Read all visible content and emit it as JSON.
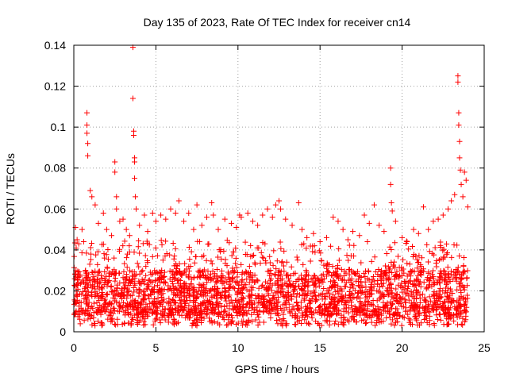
{
  "chart_data": {
    "type": "scatter",
    "title": "Day 135 of 2023, Rate Of TEC Index for receiver cn14",
    "xlabel": "GPS time / hours",
    "ylabel": "ROTI / TECUs",
    "xlim": [
      0,
      25
    ],
    "ylim": [
      0,
      0.14
    ],
    "x_ticks": [
      0,
      5,
      10,
      15,
      20,
      25
    ],
    "x_tick_labels": [
      "0",
      "5",
      "10",
      "15",
      "20",
      "25"
    ],
    "y_ticks": [
      0,
      0.02,
      0.04,
      0.06,
      0.08,
      0.1,
      0.12,
      0.14
    ],
    "y_tick_labels": [
      "0",
      "0.02",
      "0.04",
      "0.06",
      "0.08",
      "0.1",
      "0.12",
      "0.14"
    ],
    "grid": true,
    "marker": "plus",
    "color": "#ff0000",
    "series": [
      {
        "name": "ROTI",
        "points": [
          [
            0.1,
            0.051
          ],
          [
            0.2,
            0.045
          ],
          [
            0.3,
            0.043
          ],
          [
            0.5,
            0.05
          ],
          [
            0.6,
            0.044
          ],
          [
            0.8,
            0.107
          ],
          [
            0.8,
            0.101
          ],
          [
            0.8,
            0.097
          ],
          [
            0.85,
            0.092
          ],
          [
            0.85,
            0.086
          ],
          [
            1.0,
            0.069
          ],
          [
            1.1,
            0.066
          ],
          [
            1.3,
            0.062
          ],
          [
            1.5,
            0.053
          ],
          [
            1.8,
            0.058
          ],
          [
            2.0,
            0.05
          ],
          [
            2.3,
            0.047
          ],
          [
            2.5,
            0.083
          ],
          [
            2.5,
            0.078
          ],
          [
            2.6,
            0.066
          ],
          [
            2.6,
            0.06
          ],
          [
            2.8,
            0.054
          ],
          [
            3.0,
            0.055
          ],
          [
            3.2,
            0.05
          ],
          [
            3.4,
            0.047
          ],
          [
            3.6,
            0.139
          ],
          [
            3.6,
            0.114
          ],
          [
            3.65,
            0.098
          ],
          [
            3.65,
            0.096
          ],
          [
            3.7,
            0.085
          ],
          [
            3.7,
            0.083
          ],
          [
            3.7,
            0.075
          ],
          [
            3.75,
            0.066
          ],
          [
            3.8,
            0.06
          ],
          [
            4.0,
            0.052
          ],
          [
            4.3,
            0.057
          ],
          [
            4.5,
            0.049
          ],
          [
            4.8,
            0.058
          ],
          [
            5.0,
            0.054
          ],
          [
            5.3,
            0.057
          ],
          [
            5.6,
            0.055
          ],
          [
            5.9,
            0.06
          ],
          [
            6.2,
            0.058
          ],
          [
            6.4,
            0.064
          ],
          [
            6.7,
            0.054
          ],
          [
            7.0,
            0.058
          ],
          [
            7.3,
            0.05
          ],
          [
            7.5,
            0.062
          ],
          [
            7.8,
            0.052
          ],
          [
            8.1,
            0.056
          ],
          [
            8.4,
            0.063
          ],
          [
            8.5,
            0.057
          ],
          [
            8.8,
            0.05
          ],
          [
            9.2,
            0.055
          ],
          [
            9.6,
            0.053
          ],
          [
            9.9,
            0.051
          ],
          [
            10.1,
            0.057
          ],
          [
            10.2,
            0.056
          ],
          [
            10.6,
            0.058
          ],
          [
            10.9,
            0.054
          ],
          [
            11.2,
            0.052
          ],
          [
            11.5,
            0.057
          ],
          [
            11.8,
            0.06
          ],
          [
            12.1,
            0.056
          ],
          [
            12.3,
            0.062
          ],
          [
            12.5,
            0.064
          ],
          [
            12.6,
            0.06
          ],
          [
            12.9,
            0.055
          ],
          [
            13.3,
            0.052
          ],
          [
            13.7,
            0.063
          ],
          [
            13.9,
            0.05
          ],
          [
            14.2,
            0.046
          ],
          [
            14.6,
            0.048
          ],
          [
            15.0,
            0.044
          ],
          [
            15.4,
            0.046
          ],
          [
            15.8,
            0.056
          ],
          [
            16.1,
            0.054
          ],
          [
            16.4,
            0.05
          ],
          [
            16.7,
            0.045
          ],
          [
            17.0,
            0.049
          ],
          [
            17.4,
            0.047
          ],
          [
            17.7,
            0.057
          ],
          [
            18.0,
            0.053
          ],
          [
            18.3,
            0.062
          ],
          [
            18.6,
            0.052
          ],
          [
            18.9,
            0.049
          ],
          [
            19.3,
            0.08
          ],
          [
            19.3,
            0.072
          ],
          [
            19.35,
            0.063
          ],
          [
            19.4,
            0.059
          ],
          [
            19.6,
            0.054
          ],
          [
            20.0,
            0.046
          ],
          [
            20.3,
            0.044
          ],
          [
            20.7,
            0.05
          ],
          [
            21.0,
            0.048
          ],
          [
            21.3,
            0.061
          ],
          [
            21.6,
            0.05
          ],
          [
            21.9,
            0.054
          ],
          [
            22.2,
            0.055
          ],
          [
            22.5,
            0.057
          ],
          [
            22.8,
            0.06
          ],
          [
            23.0,
            0.064
          ],
          [
            23.2,
            0.067
          ],
          [
            23.4,
            0.125
          ],
          [
            23.4,
            0.122
          ],
          [
            23.45,
            0.107
          ],
          [
            23.45,
            0.101
          ],
          [
            23.5,
            0.093
          ],
          [
            23.5,
            0.085
          ],
          [
            23.55,
            0.079
          ],
          [
            23.6,
            0.072
          ],
          [
            23.7,
            0.066
          ],
          [
            23.8,
            0.078
          ],
          [
            23.9,
            0.074
          ],
          [
            24.0,
            0.061
          ]
        ],
        "band": {
          "x_range": [
            0,
            24
          ],
          "y_floor": [
            0.003,
            0.018
          ],
          "y_typical": [
            0.008,
            0.03
          ],
          "y_spread": [
            0.018,
            0.045
          ]
        }
      }
    ]
  }
}
